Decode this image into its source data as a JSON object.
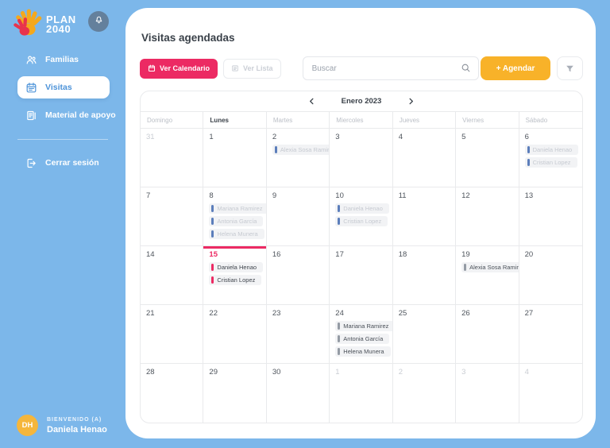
{
  "sidebar": {
    "logo": {
      "line1": "PLAN",
      "line2": "2040"
    },
    "items": [
      {
        "label": "Familias",
        "icon": "people-icon",
        "active": false
      },
      {
        "label": "Visitas",
        "icon": "calendar-icon",
        "active": true
      },
      {
        "label": "Material de apoyo",
        "icon": "document-icon",
        "active": false
      }
    ],
    "logout_label": "Cerrar sesión",
    "welcome_label": "BIENVENIDO (A)",
    "user_name": "Daniela Henao",
    "user_initials": "DH"
  },
  "header": {
    "title": "Visitas agendadas",
    "view_calendar_label": "Ver Calendario",
    "view_list_label": "Ver Lista",
    "search_placeholder": "Buscar",
    "schedule_label": "+  Agendar"
  },
  "calendar": {
    "month_label": "Enero 2023",
    "today_column": 1,
    "day_headers": [
      "Domingo",
      "Lunes",
      "Martes",
      "Miercoles",
      "Jueves",
      "Viernes",
      "Sábado"
    ],
    "weeks": [
      [
        {
          "n": "31",
          "outside": true
        },
        {
          "n": "1"
        },
        {
          "n": "2",
          "events": [
            {
              "name": "Alexia Sosa Ramirez",
              "status": "past"
            }
          ]
        },
        {
          "n": "3"
        },
        {
          "n": "4"
        },
        {
          "n": "5"
        },
        {
          "n": "6",
          "events": [
            {
              "name": "Daniela Henao",
              "status": "past"
            },
            {
              "name": "Cristian Lopez",
              "status": "past"
            }
          ]
        }
      ],
      [
        {
          "n": "7"
        },
        {
          "n": "8",
          "events": [
            {
              "name": "Mariana Ramirez",
              "status": "past"
            },
            {
              "name": "Antonia García",
              "status": "past"
            },
            {
              "name": "Helena Munera",
              "status": "past"
            }
          ]
        },
        {
          "n": "9"
        },
        {
          "n": "10",
          "events": [
            {
              "name": "Daniela Henao",
              "status": "past"
            },
            {
              "name": "Cristian Lopez",
              "status": "past"
            }
          ]
        },
        {
          "n": "11"
        },
        {
          "n": "12"
        },
        {
          "n": "13"
        }
      ],
      [
        {
          "n": "14"
        },
        {
          "n": "15",
          "today": true,
          "events": [
            {
              "name": "Daniela Henao",
              "status": "today"
            },
            {
              "name": "Cristian Lopez",
              "status": "today"
            }
          ]
        },
        {
          "n": "16"
        },
        {
          "n": "17"
        },
        {
          "n": "18"
        },
        {
          "n": "19",
          "events": [
            {
              "name": "Alexia Sosa Ramirez",
              "status": "future"
            }
          ]
        },
        {
          "n": "20"
        }
      ],
      [
        {
          "n": "21"
        },
        {
          "n": "22"
        },
        {
          "n": "23"
        },
        {
          "n": "24",
          "events": [
            {
              "name": "Mariana Ramirez",
              "status": "future"
            },
            {
              "name": "Antonia García",
              "status": "future"
            },
            {
              "name": "Helena Munera",
              "status": "future"
            }
          ]
        },
        {
          "n": "25"
        },
        {
          "n": "26"
        },
        {
          "n": "27"
        }
      ],
      [
        {
          "n": "28"
        },
        {
          "n": "29"
        },
        {
          "n": "30"
        },
        {
          "n": "1",
          "outside": true
        },
        {
          "n": "2",
          "outside": true
        },
        {
          "n": "3",
          "outside": true
        },
        {
          "n": "4",
          "outside": true
        }
      ]
    ]
  },
  "colors": {
    "sidebar_background": "#7CB7EA",
    "accent_pink": "#EC2A63",
    "accent_yellow": "#F8B229",
    "active_link_blue": "#4D93D9",
    "past_event_bar_blue": "#5C7EBB",
    "future_event_bar_gray": "#949BA4",
    "avatar_orange": "#F5B63C"
  }
}
